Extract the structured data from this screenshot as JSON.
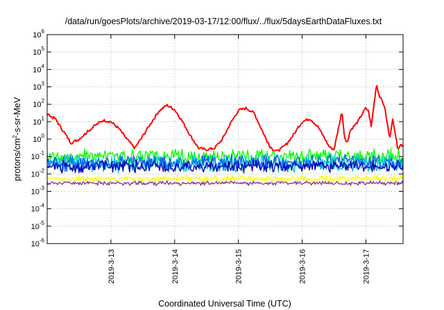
{
  "chart_data": {
    "type": "line",
    "title": "/data/run/goesPlots/archive/2019-03-17/12:00/flux/../flux/5daysEarthDataFluxes.txt",
    "xlabel": "Coordinated Universal Time (UTC)",
    "ylabel": "protons/cm²-s-sr-MeV",
    "ylabel_parts": {
      "pre": "protons/cm",
      "sup": "2",
      "post": "-s-sr-MeV"
    },
    "y_scale": "log",
    "ylim": [
      1e-06,
      1000000.0
    ],
    "y_ticks": [
      {
        "value": 1e-06,
        "base": "10",
        "exp": "-6"
      },
      {
        "value": 1e-05,
        "base": "10",
        "exp": "-5"
      },
      {
        "value": 0.0001,
        "base": "10",
        "exp": "-4"
      },
      {
        "value": 0.001,
        "base": "10",
        "exp": "-3"
      },
      {
        "value": 0.01,
        "base": "10",
        "exp": "-2"
      },
      {
        "value": 0.1,
        "base": "10",
        "exp": "-1"
      },
      {
        "value": 1,
        "base": "10",
        "exp": "0"
      },
      {
        "value": 10,
        "base": "10",
        "exp": "1"
      },
      {
        "value": 100,
        "base": "10",
        "exp": "2"
      },
      {
        "value": 1000,
        "base": "10",
        "exp": "3"
      },
      {
        "value": 10000,
        "base": "10",
        "exp": "4"
      },
      {
        "value": 100000,
        "base": "10",
        "exp": "5"
      },
      {
        "value": 1000000,
        "base": "10",
        "exp": "6"
      }
    ],
    "xlim": [
      "2019-03-12T00:00",
      "2019-03-17T14:00"
    ],
    "x_ticks": [
      {
        "value": "2019-03-13T00:00",
        "label": "2019-3-13"
      },
      {
        "value": "2019-03-14T00:00",
        "label": "2019-3-14"
      },
      {
        "value": "2019-03-15T00:00",
        "label": "2019-3-15"
      },
      {
        "value": "2019-03-16T00:00",
        "label": "2019-3-16"
      },
      {
        "value": "2019-03-17T00:00",
        "label": "2019-3-17"
      }
    ],
    "grid": true,
    "legend": "none",
    "series": [
      {
        "color": "#ff0000",
        "noise": 0.15,
        "x": [
          "2019-03-12T00:00",
          "2019-03-12T03:00",
          "2019-03-12T06:00",
          "2019-03-12T09:00",
          "2019-03-12T12:00",
          "2019-03-12T15:00",
          "2019-03-12T18:00",
          "2019-03-12T21:00",
          "2019-03-13T00:00",
          "2019-03-13T03:00",
          "2019-03-13T06:00",
          "2019-03-13T09:00",
          "2019-03-13T12:00",
          "2019-03-13T15:00",
          "2019-03-13T18:00",
          "2019-03-13T21:00",
          "2019-03-14T00:00",
          "2019-03-14T03:00",
          "2019-03-14T06:00",
          "2019-03-14T09:00",
          "2019-03-14T12:00",
          "2019-03-14T15:00",
          "2019-03-14T18:00",
          "2019-03-14T21:00",
          "2019-03-15T00:00",
          "2019-03-15T03:00",
          "2019-03-15T06:00",
          "2019-03-15T09:00",
          "2019-03-15T12:00",
          "2019-03-15T15:00",
          "2019-03-15T18:00",
          "2019-03-15T21:00",
          "2019-03-16T00:00",
          "2019-03-16T03:00",
          "2019-03-16T06:00",
          "2019-03-16T09:00",
          "2019-03-16T10:00",
          "2019-03-16T11:00",
          "2019-03-16T12:00",
          "2019-03-16T15:00",
          "2019-03-16T16:00",
          "2019-03-16T17:00",
          "2019-03-16T18:00",
          "2019-03-16T21:00",
          "2019-03-16T23:00",
          "2019-03-17T00:00",
          "2019-03-17T01:00",
          "2019-03-17T02:00",
          "2019-03-17T04:00",
          "2019-03-17T05:00",
          "2019-03-17T07:00",
          "2019-03-17T09:00",
          "2019-03-17T10:00",
          "2019-03-17T12:00",
          "2019-03-17T14:00"
        ],
        "y": [
          25,
          15,
          3,
          0.6,
          1,
          2.5,
          6,
          12,
          10,
          4,
          1,
          0.3,
          1.5,
          8,
          40,
          90,
          50,
          10,
          1.5,
          0.3,
          0.25,
          0.3,
          1,
          8,
          45,
          60,
          30,
          3,
          0.3,
          0.2,
          0.5,
          2,
          10,
          15,
          5,
          0.8,
          0.4,
          0.3,
          0.25,
          40,
          1,
          0.6,
          3,
          10,
          35,
          60,
          40,
          5,
          1500,
          300,
          80,
          1,
          15,
          0.3,
          0.5
        ]
      },
      {
        "color": "#00ff00",
        "band": [
          0.05,
          0.2
        ],
        "noise": 0.35
      },
      {
        "color": "#00c8c8",
        "band": [
          0.015,
          0.1
        ],
        "noise": 0.35
      },
      {
        "color": "#0064ff",
        "band": [
          0.02,
          0.1
        ],
        "noise": 0.35
      },
      {
        "color": "#0000b4",
        "band": [
          0.015,
          0.05
        ],
        "noise": 0.3
      },
      {
        "color": "#ffff00",
        "band": [
          0.004,
          0.007
        ],
        "noise": 0.2
      },
      {
        "color": "#8c3c8c",
        "band": [
          0.0025,
          0.0035
        ],
        "noise": 0.15
      }
    ]
  }
}
